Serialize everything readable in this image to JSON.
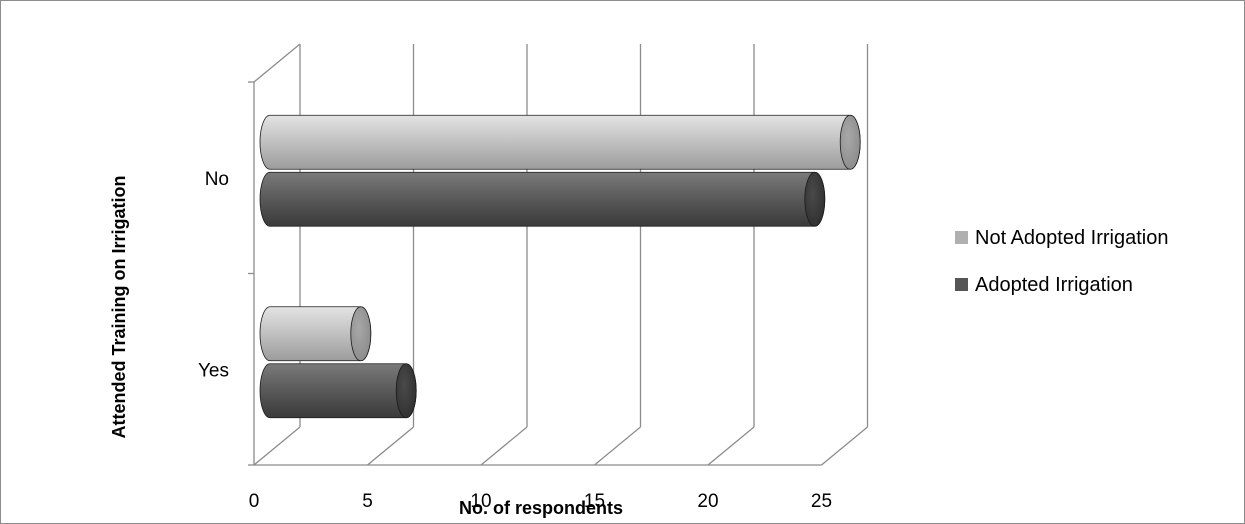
{
  "chart_data": {
    "type": "bar",
    "orientation": "horizontal",
    "style": "3d-cylinder",
    "title": "",
    "xlabel": "No. of respondents",
    "ylabel": "Attended Training on Irrigation",
    "categories": [
      "No",
      "Yes"
    ],
    "series": [
      {
        "name": "Not Adopted Irrigation",
        "color": "#bfbfbf",
        "values": [
          26,
          4
        ]
      },
      {
        "name": "Adopted Irrigation",
        "color": "#595959",
        "values": [
          24,
          6
        ]
      }
    ],
    "xlim": [
      0,
      25
    ],
    "xticks": [
      "0",
      "5",
      "10",
      "15",
      "20",
      "25"
    ],
    "grid": true,
    "legend_position": "right"
  }
}
